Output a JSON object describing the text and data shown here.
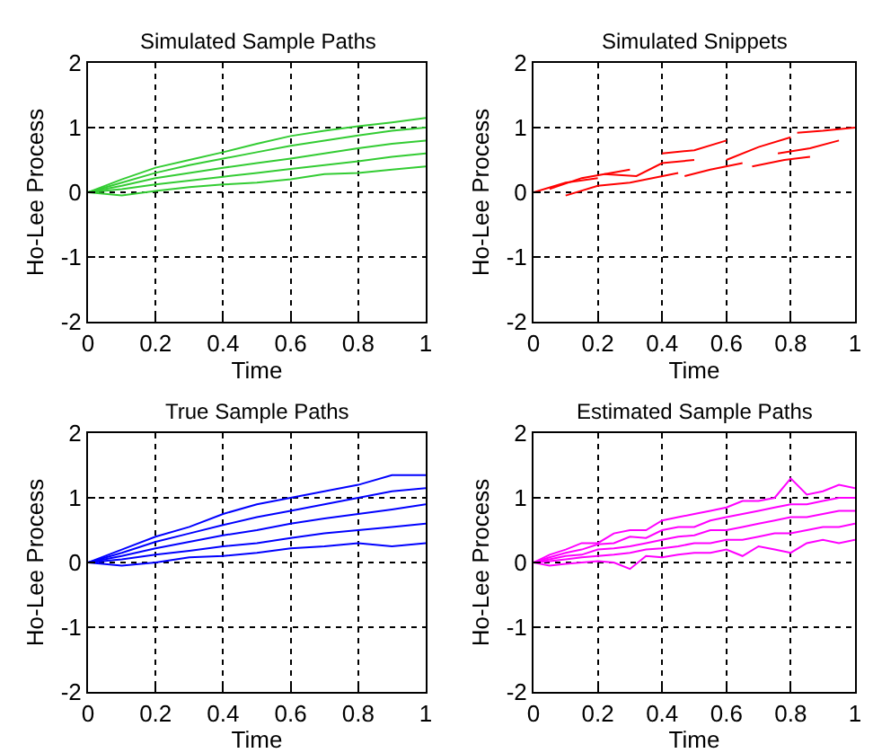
{
  "chart_data": [
    {
      "type": "line",
      "title": "Simulated Sample Paths",
      "xlabel": "Time",
      "ylabel": "Ho-Lee Process",
      "x": [
        0,
        0.1,
        0.2,
        0.3,
        0.4,
        0.5,
        0.6,
        0.7,
        0.8,
        0.9,
        1
      ],
      "xlim": [
        0,
        1
      ],
      "ylim": [
        -2,
        2
      ],
      "xticks": [
        0,
        0.2,
        0.4,
        0.6,
        0.8,
        1
      ],
      "yticks": [
        -2,
        -1,
        0,
        1,
        2
      ],
      "grid": true,
      "marker": "none",
      "line_style": "solid",
      "series": [
        {
          "color": "#33cc33",
          "values": [
            0,
            0.2,
            0.38,
            0.5,
            0.62,
            0.75,
            0.87,
            0.95,
            1.02,
            1.08,
            1.15
          ]
        },
        {
          "color": "#33cc33",
          "values": [
            0,
            0.15,
            0.3,
            0.42,
            0.52,
            0.62,
            0.72,
            0.8,
            0.88,
            0.95,
            1.0
          ]
        },
        {
          "color": "#33cc33",
          "values": [
            0,
            0.1,
            0.22,
            0.3,
            0.38,
            0.45,
            0.52,
            0.6,
            0.68,
            0.75,
            0.8
          ]
        },
        {
          "color": "#33cc33",
          "values": [
            0,
            0.05,
            0.12,
            0.18,
            0.24,
            0.3,
            0.36,
            0.42,
            0.48,
            0.55,
            0.6
          ]
        },
        {
          "color": "#33cc33",
          "values": [
            0,
            -0.05,
            0.02,
            0.08,
            0.12,
            0.15,
            0.2,
            0.28,
            0.3,
            0.35,
            0.4
          ]
        }
      ]
    },
    {
      "type": "line",
      "title": "Simulated Snippets",
      "xlabel": "Time",
      "ylabel": "Ho-Lee Process",
      "xlim": [
        0,
        1
      ],
      "ylim": [
        -2,
        2
      ],
      "xticks": [
        0,
        0.2,
        0.4,
        0.6,
        0.8,
        1
      ],
      "yticks": [
        -2,
        -1,
        0,
        1,
        2
      ],
      "grid": true,
      "marker": "none",
      "line_style": "solid",
      "series": [
        {
          "color": "#ff0000",
          "x": [
            0,
            0.1,
            0.2
          ],
          "values": [
            0,
            0.15,
            0.22
          ]
        },
        {
          "color": "#ff0000",
          "x": [
            0.05,
            0.15,
            0.3
          ],
          "values": [
            0.05,
            0.22,
            0.35
          ]
        },
        {
          "color": "#ff0000",
          "x": [
            0.1,
            0.2,
            0.3,
            0.45
          ],
          "values": [
            -0.05,
            0.1,
            0.15,
            0.3
          ]
        },
        {
          "color": "#ff0000",
          "x": [
            0.22,
            0.32,
            0.4,
            0.5
          ],
          "values": [
            0.28,
            0.25,
            0.45,
            0.5
          ]
        },
        {
          "color": "#ff0000",
          "x": [
            0.4,
            0.5,
            0.6
          ],
          "values": [
            0.6,
            0.65,
            0.8
          ]
        },
        {
          "color": "#ff0000",
          "x": [
            0.47,
            0.55,
            0.65
          ],
          "values": [
            0.25,
            0.35,
            0.45
          ]
        },
        {
          "color": "#ff0000",
          "x": [
            0.6,
            0.7,
            0.8
          ],
          "values": [
            0.5,
            0.7,
            0.85
          ]
        },
        {
          "color": "#ff0000",
          "x": [
            0.68,
            0.78,
            0.86
          ],
          "values": [
            0.4,
            0.5,
            0.55
          ]
        },
        {
          "color": "#ff0000",
          "x": [
            0.82,
            0.9,
            1
          ],
          "values": [
            0.92,
            0.95,
            1.0
          ]
        },
        {
          "color": "#ff0000",
          "x": [
            0.76,
            0.86,
            0.95
          ],
          "values": [
            0.6,
            0.68,
            0.8
          ]
        }
      ]
    },
    {
      "type": "line",
      "title": "True Sample Paths",
      "xlabel": "Time",
      "ylabel": "Ho-Lee Process",
      "x": [
        0,
        0.1,
        0.2,
        0.3,
        0.4,
        0.5,
        0.6,
        0.7,
        0.8,
        0.9,
        1
      ],
      "xlim": [
        0,
        1
      ],
      "ylim": [
        -2,
        2
      ],
      "xticks": [
        0,
        0.2,
        0.4,
        0.6,
        0.8,
        1
      ],
      "yticks": [
        -2,
        -1,
        0,
        1,
        2
      ],
      "grid": true,
      "marker": "none",
      "line_style": "solid",
      "series": [
        {
          "color": "#0000ff",
          "values": [
            0,
            0.2,
            0.4,
            0.55,
            0.75,
            0.9,
            1.0,
            1.1,
            1.2,
            1.35,
            1.35
          ]
        },
        {
          "color": "#0000ff",
          "values": [
            0,
            0.15,
            0.32,
            0.45,
            0.58,
            0.7,
            0.8,
            0.9,
            1.0,
            1.1,
            1.15
          ]
        },
        {
          "color": "#0000ff",
          "values": [
            0,
            0.1,
            0.22,
            0.32,
            0.42,
            0.5,
            0.6,
            0.68,
            0.75,
            0.82,
            0.9
          ]
        },
        {
          "color": "#0000ff",
          "values": [
            0,
            0.05,
            0.12,
            0.18,
            0.25,
            0.3,
            0.38,
            0.45,
            0.5,
            0.55,
            0.6
          ]
        },
        {
          "color": "#0000ff",
          "values": [
            0,
            -0.05,
            0.0,
            0.08,
            0.1,
            0.15,
            0.22,
            0.25,
            0.3,
            0.25,
            0.3
          ]
        }
      ]
    },
    {
      "type": "line",
      "title": "Estimated Sample Paths",
      "xlabel": "Time",
      "ylabel": "Ho-Lee Process",
      "x": [
        0,
        0.05,
        0.1,
        0.15,
        0.2,
        0.25,
        0.3,
        0.35,
        0.4,
        0.45,
        0.5,
        0.55,
        0.6,
        0.65,
        0.7,
        0.75,
        0.8,
        0.85,
        0.9,
        0.95,
        1
      ],
      "xlim": [
        0,
        1
      ],
      "ylim": [
        -2,
        2
      ],
      "xticks": [
        0,
        0.2,
        0.4,
        0.6,
        0.8,
        1
      ],
      "yticks": [
        -2,
        -1,
        0,
        1,
        2
      ],
      "grid": true,
      "marker": "none",
      "line_style": "solid",
      "series": [
        {
          "color": "#ff00ff",
          "values": [
            0,
            0.12,
            0.2,
            0.3,
            0.3,
            0.45,
            0.5,
            0.5,
            0.65,
            0.7,
            0.75,
            0.8,
            0.85,
            0.95,
            0.95,
            1.0,
            1.3,
            1.05,
            1.1,
            1.2,
            1.15
          ]
        },
        {
          "color": "#ff00ff",
          "values": [
            0,
            0.08,
            0.15,
            0.2,
            0.28,
            0.3,
            0.4,
            0.38,
            0.5,
            0.55,
            0.55,
            0.65,
            0.7,
            0.75,
            0.8,
            0.85,
            0.9,
            0.9,
            0.95,
            1.0,
            1.0
          ]
        },
        {
          "color": "#ff00ff",
          "values": [
            0,
            0.05,
            0.1,
            0.12,
            0.2,
            0.22,
            0.25,
            0.3,
            0.35,
            0.4,
            0.42,
            0.5,
            0.5,
            0.55,
            0.6,
            0.65,
            0.7,
            0.7,
            0.75,
            0.8,
            0.8
          ]
        },
        {
          "color": "#ff00ff",
          "values": [
            0,
            0.02,
            0.05,
            0.08,
            0.1,
            0.12,
            0.15,
            0.2,
            0.22,
            0.25,
            0.3,
            0.3,
            0.35,
            0.35,
            0.4,
            0.45,
            0.45,
            0.5,
            0.55,
            0.55,
            0.6
          ]
        },
        {
          "color": "#ff00ff",
          "values": [
            0,
            -0.05,
            -0.02,
            0.0,
            0.02,
            0.0,
            -0.1,
            0.1,
            0.08,
            0.12,
            0.15,
            0.15,
            0.2,
            0.1,
            0.25,
            0.2,
            0.15,
            0.3,
            0.35,
            0.3,
            0.35
          ]
        }
      ]
    }
  ]
}
